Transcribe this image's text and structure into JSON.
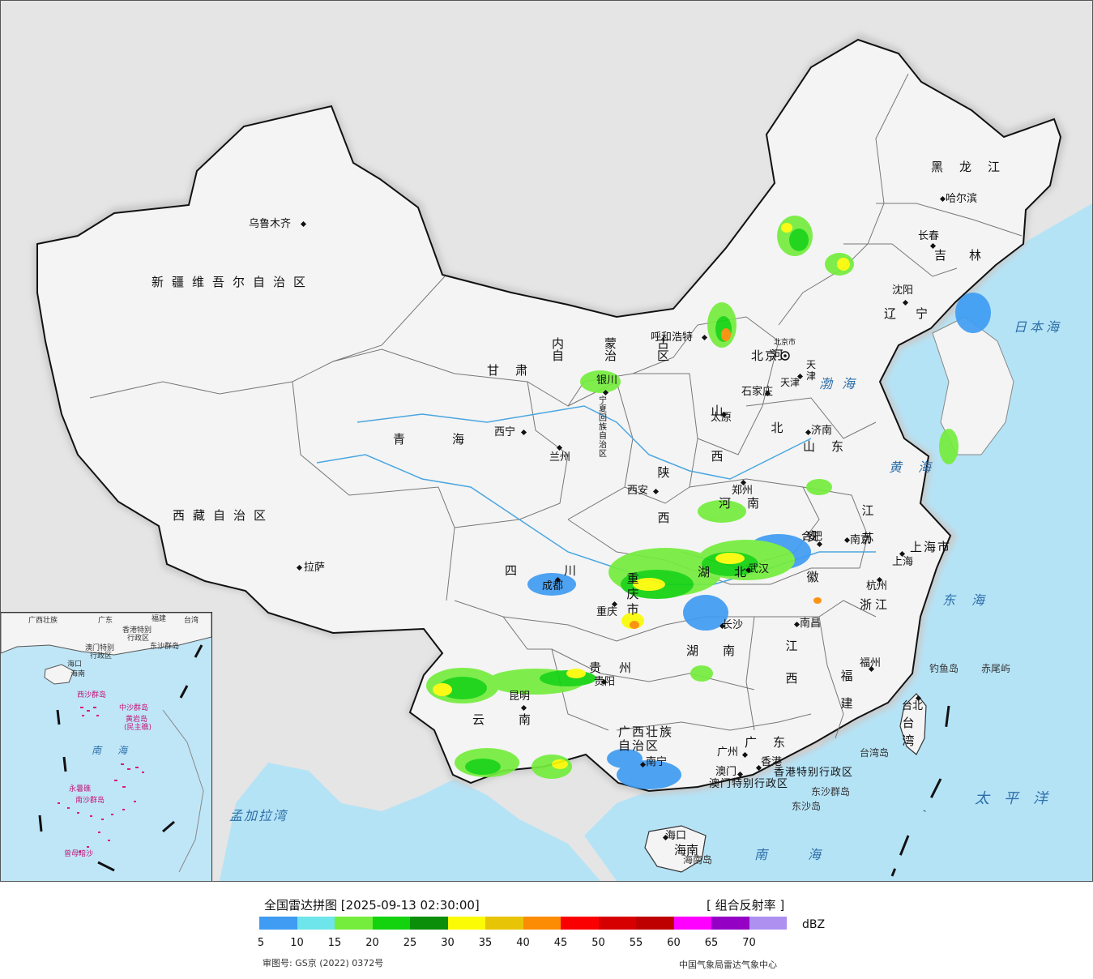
{
  "map": {
    "provinces": [
      {
        "id": "xinjiang",
        "text": "新疆维吾尔自治区"
      },
      {
        "id": "xizang",
        "text": "西藏自治区"
      },
      {
        "id": "qinghai",
        "text": "青海"
      },
      {
        "id": "gansu",
        "text": "甘肃"
      },
      {
        "id": "neimenggu",
        "text": "内蒙古自治区"
      },
      {
        "id": "sichuan",
        "text": "四川"
      },
      {
        "id": "yunnan",
        "text": "云南"
      },
      {
        "id": "shaanxi",
        "text": "陕西"
      },
      {
        "id": "shanxi",
        "text": "山西"
      },
      {
        "id": "henan",
        "text": "河南"
      },
      {
        "id": "hebei",
        "text": "河北"
      },
      {
        "id": "shandong",
        "text": "山东"
      },
      {
        "id": "hubei",
        "text": "湖北"
      },
      {
        "id": "hunan",
        "text": "湖南"
      },
      {
        "id": "guizhou",
        "text": "贵州"
      },
      {
        "id": "jiangxi",
        "text": "江西"
      },
      {
        "id": "anhui",
        "text": "安徽"
      },
      {
        "id": "jiangsu",
        "text": "江苏"
      },
      {
        "id": "zhejiang",
        "text": "浙江"
      },
      {
        "id": "fujian",
        "text": "福建"
      },
      {
        "id": "guangdong",
        "text": "广东"
      },
      {
        "id": "guangxi",
        "text": "广西壮族自治区"
      },
      {
        "id": "hainan",
        "text": "海南"
      },
      {
        "id": "taiwan",
        "text": "台湾"
      },
      {
        "id": "heilongjiang",
        "text": "黑龙江"
      },
      {
        "id": "jilin",
        "text": "吉林"
      },
      {
        "id": "liaoning",
        "text": "辽宁"
      },
      {
        "id": "ningxia",
        "text": "宁夏回族自治区"
      },
      {
        "id": "chongqing",
        "text": "重庆市"
      },
      {
        "id": "shanghai",
        "text": "上海市"
      },
      {
        "id": "beijing",
        "text": "北京"
      },
      {
        "id": "tianjin",
        "text": "天津"
      },
      {
        "id": "hongkong",
        "text": "香港特别行政区"
      },
      {
        "id": "macau",
        "text": "澳门特别行政区"
      }
    ],
    "cities": [
      {
        "id": "urumqi",
        "text": "乌鲁木齐"
      },
      {
        "id": "lhasa",
        "text": "拉萨"
      },
      {
        "id": "xining",
        "text": "西宁"
      },
      {
        "id": "lanzhou",
        "text": "兰州"
      },
      {
        "id": "yinchuan",
        "text": "银川"
      },
      {
        "id": "hohhot",
        "text": "呼和浩特"
      },
      {
        "id": "xian",
        "text": "西安"
      },
      {
        "id": "chengdu",
        "text": "成都"
      },
      {
        "id": "chongqing-city",
        "text": "重庆"
      },
      {
        "id": "kunming",
        "text": "昆明"
      },
      {
        "id": "guiyang",
        "text": "贵阳"
      },
      {
        "id": "nanning",
        "text": "南宁"
      },
      {
        "id": "guangzhou",
        "text": "广州"
      },
      {
        "id": "hongkong-city",
        "text": "香港"
      },
      {
        "id": "macau-city",
        "text": "澳门"
      },
      {
        "id": "haikou",
        "text": "海口"
      },
      {
        "id": "changsha",
        "text": "长沙"
      },
      {
        "id": "wuhan",
        "text": "武汉"
      },
      {
        "id": "nanchang",
        "text": "南昌"
      },
      {
        "id": "hefei",
        "text": "合肥"
      },
      {
        "id": "nanjing",
        "text": "南京"
      },
      {
        "id": "shanghai-city",
        "text": "上海"
      },
      {
        "id": "hangzhou",
        "text": "杭州"
      },
      {
        "id": "fuzhou",
        "text": "福州"
      },
      {
        "id": "taibei",
        "text": "台北"
      },
      {
        "id": "zhengzhou",
        "text": "郑州"
      },
      {
        "id": "taiyuan",
        "text": "太原"
      },
      {
        "id": "shijiazhuang",
        "text": "石家庄"
      },
      {
        "id": "jinan",
        "text": "济南"
      },
      {
        "id": "tianjin-city",
        "text": "天津"
      },
      {
        "id": "beijing-city",
        "text": "北京市"
      },
      {
        "id": "shenyang",
        "text": "沈阳"
      },
      {
        "id": "changchun",
        "text": "长春"
      },
      {
        "id": "harbin",
        "text": "哈尔滨"
      }
    ],
    "seas": [
      {
        "id": "japan-sea",
        "text": "日本海"
      },
      {
        "id": "bohai",
        "text": "渤海"
      },
      {
        "id": "yellow-sea",
        "text": "黄海"
      },
      {
        "id": "east-sea",
        "text": "东海"
      },
      {
        "id": "pacific",
        "text": "太平洋"
      },
      {
        "id": "south-sea",
        "text": "南海"
      },
      {
        "id": "bengal-bay",
        "text": "孟加拉湾"
      }
    ],
    "islands": [
      {
        "id": "diaoyu",
        "text": "钓鱼岛"
      },
      {
        "id": "chiwei",
        "text": "赤尾屿"
      },
      {
        "id": "dongsha",
        "text": "东沙群岛"
      },
      {
        "id": "dongsha-dao",
        "text": "东沙岛"
      },
      {
        "id": "taiwan-dao",
        "text": "台湾岛"
      },
      {
        "id": "hainan-dao",
        "text": "海南岛"
      }
    ],
    "inset": {
      "labels": [
        {
          "id": "guangxi",
          "text": "广西壮族"
        },
        {
          "id": "guangdong",
          "text": "广东"
        },
        {
          "id": "fujian",
          "text": "福建"
        },
        {
          "id": "taiwan",
          "text": "台湾"
        },
        {
          "id": "hk",
          "text": "香港特别"
        },
        {
          "id": "hk2",
          "text": "行政区"
        },
        {
          "id": "macau",
          "text": "澳门特别"
        },
        {
          "id": "macau2",
          "text": "行政区"
        },
        {
          "id": "dongsha",
          "text": "东沙群岛"
        },
        {
          "id": "haikou",
          "text": "海口"
        },
        {
          "id": "hainan",
          "text": "海南"
        },
        {
          "id": "sea",
          "text": "南海"
        }
      ],
      "pink_labels": [
        {
          "id": "xisha",
          "text": "西沙群岛"
        },
        {
          "id": "zhongsha",
          "text": "中沙群岛"
        },
        {
          "id": "huangyan",
          "text": "黄岩岛"
        },
        {
          "id": "minzhu",
          "text": "(民主礁)"
        },
        {
          "id": "nansha",
          "text": "南沙群岛"
        },
        {
          "id": "yongshu",
          "text": "永暑礁"
        },
        {
          "id": "zengmu",
          "text": "曾母暗沙"
        }
      ]
    }
  },
  "legend": {
    "title": "全国雷达拼图 [2025-09-13 02:30:00]",
    "product": "[ 组合反射率 ]",
    "unit": "dBZ",
    "colors": [
      "#3f9cf2",
      "#6ee5ea",
      "#74ed3d",
      "#13d30f",
      "#0b8f0a",
      "#fbfb05",
      "#e7c406",
      "#fc8c04",
      "#fb0000",
      "#d70000",
      "#be0000",
      "#fd00ff",
      "#9400c4",
      "#ad90f0"
    ],
    "ticks": [
      "5",
      "10",
      "15",
      "20",
      "25",
      "30",
      "35",
      "40",
      "45",
      "50",
      "55",
      "60",
      "65",
      "70"
    ],
    "review_no": "审图号: GS京 (2022) 0372号",
    "center": "中国气象局雷达气象中心"
  }
}
